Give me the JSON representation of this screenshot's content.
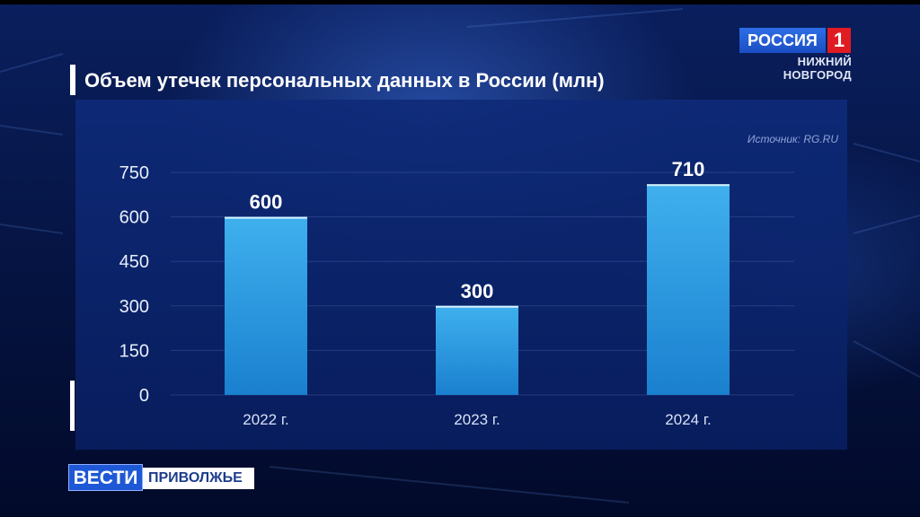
{
  "channel": {
    "logo_text": "РОССИЯ",
    "logo_number": "1",
    "region_line1": "НИЖНИЙ",
    "region_line2": "НОВГОРОД",
    "vesti": "ВЕСТИ",
    "vesti_region": "ПРИВОЛЖЬЕ"
  },
  "chart_data": {
    "type": "bar",
    "title": "Объем утечек персональных данных в России (млн)",
    "source": "Источник: RG.RU",
    "categories": [
      "2022 г.",
      "2023 г.",
      "2024 г."
    ],
    "values": [
      600,
      300,
      710
    ],
    "data_labels": [
      "600",
      "300",
      "710"
    ],
    "ylim": [
      0,
      750
    ],
    "yticks": [
      "0",
      "150",
      "300",
      "450",
      "600",
      "750"
    ],
    "grid": true,
    "bar_color_top": "#3fb0ee",
    "bar_color_bottom": "#1a80cf"
  }
}
